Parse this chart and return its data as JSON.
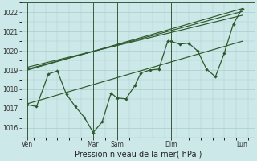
{
  "background_color": "#cce8e8",
  "grid_color": "#aacccc",
  "line_color": "#2d5a2d",
  "xlabel": "Pression niveau de la mer( hPa )",
  "ylim": [
    1015.5,
    1022.5
  ],
  "yticks": [
    1016,
    1017,
    1018,
    1019,
    1020,
    1021,
    1022
  ],
  "xlim": [
    0,
    312
  ],
  "xtick_positions": [
    8,
    96,
    128,
    200,
    296
  ],
  "xtick_labels": [
    "Ven",
    "Mar",
    "Sam",
    "Dim",
    "Lun"
  ],
  "vline_positions": [
    8,
    96,
    128,
    200,
    296
  ],
  "series_main": [
    [
      8,
      1017.2
    ],
    [
      20,
      1017.1
    ],
    [
      36,
      1018.8
    ],
    [
      48,
      1018.95
    ],
    [
      60,
      1017.75
    ],
    [
      72,
      1017.1
    ],
    [
      84,
      1016.55
    ],
    [
      96,
      1015.75
    ],
    [
      108,
      1016.3
    ],
    [
      120,
      1017.8
    ],
    [
      128,
      1017.55
    ],
    [
      140,
      1017.5
    ],
    [
      152,
      1018.2
    ],
    [
      160,
      1018.85
    ],
    [
      172,
      1019.0
    ],
    [
      184,
      1019.05
    ],
    [
      196,
      1020.5
    ],
    [
      200,
      1020.5
    ],
    [
      212,
      1020.35
    ],
    [
      224,
      1020.4
    ],
    [
      236,
      1020.0
    ],
    [
      248,
      1019.05
    ],
    [
      260,
      1018.65
    ],
    [
      272,
      1019.9
    ],
    [
      284,
      1021.4
    ],
    [
      296,
      1022.2
    ]
  ],
  "series_trend1": [
    [
      8,
      1019.0
    ],
    [
      296,
      1022.2
    ]
  ],
  "series_trend2": [
    [
      8,
      1019.05
    ],
    [
      296,
      1022.05
    ]
  ],
  "series_trend3": [
    [
      8,
      1019.15
    ],
    [
      296,
      1021.85
    ]
  ],
  "series_trend4": [
    [
      8,
      1017.25
    ],
    [
      296,
      1020.5
    ]
  ]
}
